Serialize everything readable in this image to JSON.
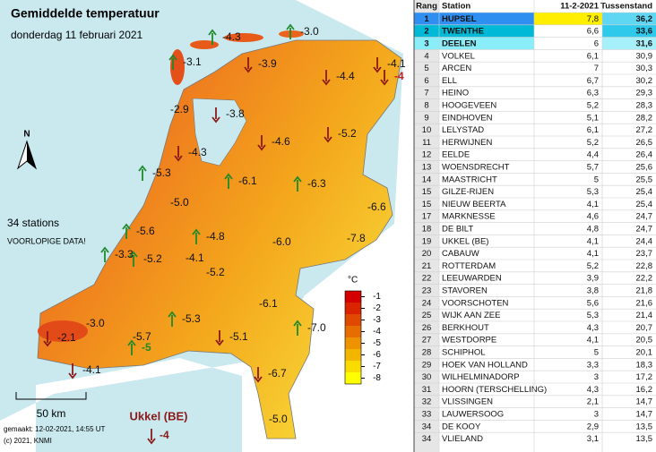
{
  "header": {
    "title": "Gemiddelde temperatuur",
    "date": "donderdag 11 februari 2021"
  },
  "info": {
    "stations": "34 stations",
    "note": "VOORLOPIGE DATA!",
    "north": "N",
    "scale": "50 km",
    "made": "gemaakt: 12-02-2021, 14:55 UT",
    "copyright": "(c) 2021, KNMI"
  },
  "ukkel": {
    "name": "Ukkel (BE)",
    "value": "-4",
    "arrow": "down"
  },
  "legend": {
    "unit": "°C",
    "ticks": [
      -1,
      -2,
      -3,
      -4,
      -5,
      -6,
      -7,
      -8
    ]
  },
  "map": {
    "labels": [
      {
        "text": "-4.3",
        "arrow": "up"
      },
      {
        "text": "-3.0",
        "arrow": "up"
      },
      {
        "text": "-3.1",
        "arrow": "up"
      },
      {
        "text": "-3.9",
        "arrow": "down"
      },
      {
        "text": "-4.4",
        "arrow": "down"
      },
      {
        "text": "-4.1",
        "arrow": "down"
      },
      {
        "text": "-4",
        "arrow": "down"
      },
      {
        "text": "-2.9",
        "arrow": "none"
      },
      {
        "text": "-3.8",
        "arrow": "down"
      },
      {
        "text": "-4.6",
        "arrow": "down"
      },
      {
        "text": "-5.2",
        "arrow": "down"
      },
      {
        "text": "-4.3",
        "arrow": "down"
      },
      {
        "text": "-5.3",
        "arrow": "up"
      },
      {
        "text": "-6.1",
        "arrow": "up"
      },
      {
        "text": "-6.3",
        "arrow": "up"
      },
      {
        "text": "-5.0",
        "arrow": "none"
      },
      {
        "text": "-6.6",
        "arrow": "none"
      },
      {
        "text": "-5.6",
        "arrow": "up"
      },
      {
        "text": "-4.8",
        "arrow": "up"
      },
      {
        "text": "-7.8",
        "arrow": "none"
      },
      {
        "text": "-6.0",
        "arrow": "none"
      },
      {
        "text": "-3.3",
        "arrow": "up"
      },
      {
        "text": "-5.2",
        "arrow": "up"
      },
      {
        "text": "-4.1",
        "arrow": "none"
      },
      {
        "text": "-5.2",
        "arrow": "none"
      },
      {
        "text": "-6.1",
        "arrow": "none"
      },
      {
        "text": "-7.0",
        "arrow": "up"
      },
      {
        "text": "-5.3",
        "arrow": "up"
      },
      {
        "text": "-3.0",
        "arrow": "none"
      },
      {
        "text": "-5.7",
        "arrow": "none"
      },
      {
        "text": "-2.1",
        "arrow": "down"
      },
      {
        "text": "-5.1",
        "arrow": "down"
      },
      {
        "text": "-5",
        "arrow": "up"
      },
      {
        "text": "-4.1",
        "arrow": "down"
      },
      {
        "text": "-6.7",
        "arrow": "down"
      },
      {
        "text": "-5.0",
        "arrow": "none"
      }
    ]
  },
  "table": {
    "header": [
      "Rang",
      "Station",
      "11-2-2021",
      "Tussenstand"
    ],
    "rows": [
      [
        1,
        "HUPSEL",
        "7,8",
        "36,2"
      ],
      [
        2,
        "TWENTHE",
        "6,6",
        "33,6"
      ],
      [
        3,
        "DEELEN",
        "6",
        "31,6"
      ],
      [
        4,
        "VOLKEL",
        "6,1",
        "30,9"
      ],
      [
        5,
        "ARCEN",
        "7",
        "30,3"
      ],
      [
        6,
        "ELL",
        "6,7",
        "30,2"
      ],
      [
        7,
        "HEINO",
        "6,3",
        "29,3"
      ],
      [
        8,
        "HOOGEVEEN",
        "5,2",
        "28,3"
      ],
      [
        9,
        "EINDHOVEN",
        "5,1",
        "28,2"
      ],
      [
        10,
        "LELYSTAD",
        "6,1",
        "27,2"
      ],
      [
        11,
        "HERWIJNEN",
        "5,2",
        "26,5"
      ],
      [
        12,
        "EELDE",
        "4,4",
        "26,4"
      ],
      [
        13,
        "WOENSDRECHT",
        "5,7",
        "25,6"
      ],
      [
        14,
        "MAASTRICHT",
        "5",
        "25,5"
      ],
      [
        15,
        "GILZE-RIJEN",
        "5,3",
        "25,4"
      ],
      [
        15,
        "NIEUW BEERTA",
        "4,1",
        "25,4"
      ],
      [
        17,
        "MARKNESSE",
        "4,6",
        "24,7"
      ],
      [
        18,
        "DE BILT",
        "4,8",
        "24,7"
      ],
      [
        19,
        "UKKEL (BE)",
        "4,1",
        "24,4"
      ],
      [
        20,
        "CABAUW",
        "4,1",
        "23,7"
      ],
      [
        21,
        "ROTTERDAM",
        "5,2",
        "22,8"
      ],
      [
        22,
        "LEEUWARDEN",
        "3,9",
        "22,2"
      ],
      [
        23,
        "STAVOREN",
        "3,8",
        "21,8"
      ],
      [
        24,
        "VOORSCHOTEN",
        "5,6",
        "21,6"
      ],
      [
        25,
        "WIJK AAN ZEE",
        "5,3",
        "21,4"
      ],
      [
        26,
        "BERKHOUT",
        "4,3",
        "20,7"
      ],
      [
        27,
        "WESTDORPE",
        "4,1",
        "20,5"
      ],
      [
        28,
        "SCHIPHOL",
        "5",
        "20,1"
      ],
      [
        29,
        "HOEK VAN HOLLAND",
        "3,3",
        "18,3"
      ],
      [
        30,
        "WILHELMINADORP",
        "3",
        "17,2"
      ],
      [
        31,
        "HOORN (TERSCHELLING)",
        "4,3",
        "16,2"
      ],
      [
        32,
        "VLISSINGEN",
        "2,1",
        "14,7"
      ],
      [
        33,
        "LAUWERSOOG",
        "3",
        "14,7"
      ],
      [
        34,
        "DE KOOY",
        "2,9",
        "13,5"
      ],
      [
        34,
        "VLIELAND",
        "3,1",
        "13,5"
      ]
    ]
  }
}
